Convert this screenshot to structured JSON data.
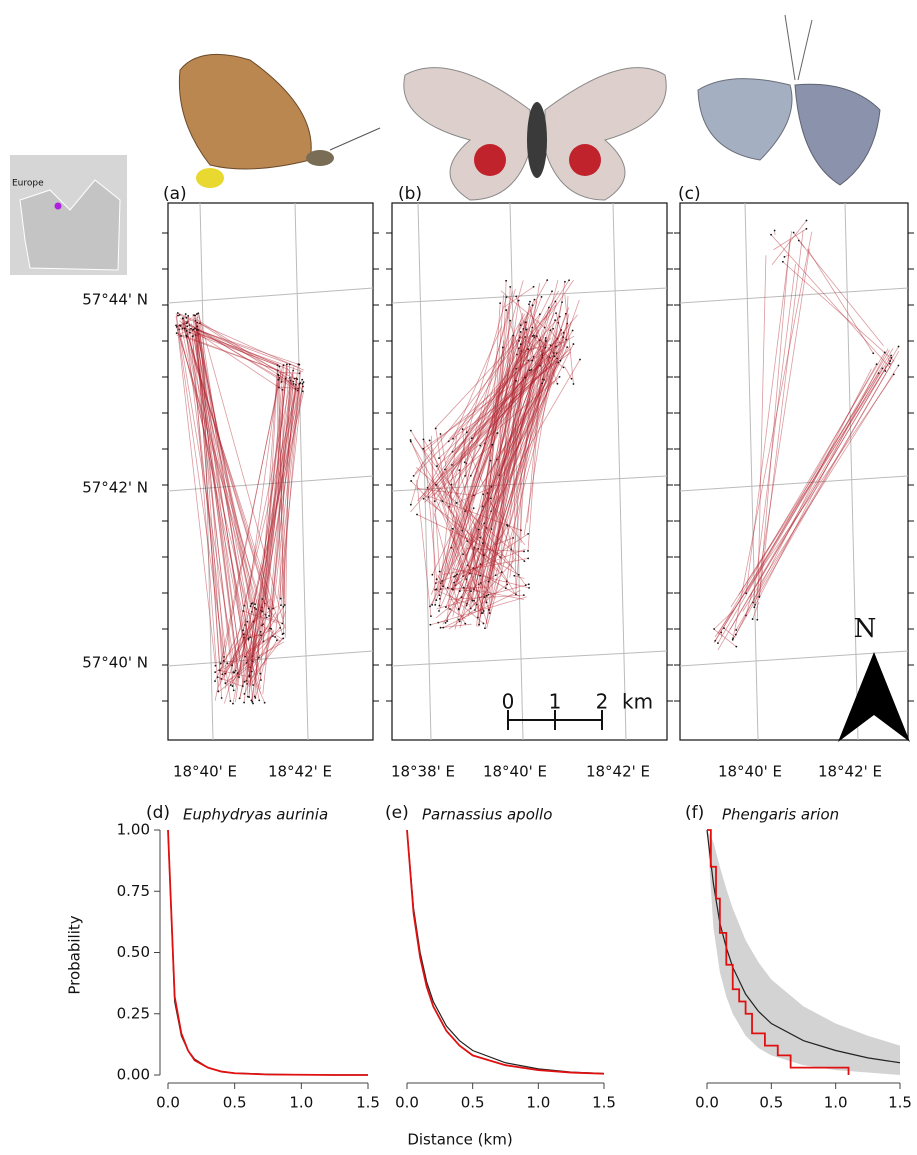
{
  "inset": {
    "label": "Europe"
  },
  "maps": {
    "panels": [
      {
        "label": "(a)",
        "xticks": [
          "18°40' E",
          "18°42' E"
        ]
      },
      {
        "label": "(b)",
        "xticks": [
          "18°38' E",
          "18°40' E",
          "18°42' E"
        ]
      },
      {
        "label": "(c)",
        "xticks": [
          "18°40' E",
          "18°42' E"
        ]
      }
    ],
    "yticks": [
      "57°44' N",
      "57°42' N",
      "57°40' N"
    ],
    "scale_bar": {
      "ticks": [
        "0",
        "1",
        "2"
      ],
      "unit": "km"
    },
    "north": "N"
  },
  "chart_data": [
    {
      "type": "line",
      "label": "(d)",
      "title": "Euphydryas aurinia",
      "ylabel": "Probability",
      "x": [
        0,
        0.05,
        0.1,
        0.15,
        0.2,
        0.3,
        0.4,
        0.5,
        0.75,
        1,
        1.25,
        1.5
      ],
      "series": [
        {
          "color": "#222222",
          "values": [
            1,
            0.3,
            0.16,
            0.1,
            0.065,
            0.03,
            0.015,
            0.008,
            0.003,
            0.001,
            0,
            0
          ]
        },
        {
          "color": "#e01010",
          "values": [
            1,
            0.32,
            0.17,
            0.1,
            0.06,
            0.03,
            0.014,
            0.007,
            0.002,
            0.001,
            0,
            0
          ]
        }
      ],
      "xlim": [
        0,
        1.5
      ],
      "ylim": [
        0,
        1
      ],
      "xticks": [
        {
          "value": 0,
          "label": "0.0"
        },
        {
          "value": 0.5,
          "label": "0.5"
        },
        {
          "value": 1,
          "label": "1.0"
        },
        {
          "value": 1.5,
          "label": "1.5"
        }
      ],
      "yticks": [
        {
          "value": 0,
          "label": "0.00"
        },
        {
          "value": 0.25,
          "label": "0.25"
        },
        {
          "value": 0.5,
          "label": "0.50"
        },
        {
          "value": 0.75,
          "label": "0.75"
        },
        {
          "value": 1,
          "label": "1.00"
        }
      ]
    },
    {
      "type": "line",
      "label": "(e)",
      "title": "Parnassius apollo",
      "xlabel": "Distance (km)",
      "x": [
        0,
        0.05,
        0.1,
        0.15,
        0.2,
        0.3,
        0.4,
        0.5,
        0.75,
        1,
        1.25,
        1.5
      ],
      "series": [
        {
          "color": "#222222",
          "values": [
            1,
            0.68,
            0.5,
            0.38,
            0.3,
            0.2,
            0.14,
            0.1,
            0.05,
            0.025,
            0.012,
            0.006
          ]
        },
        {
          "color": "#e01010",
          "values": [
            1,
            0.66,
            0.48,
            0.36,
            0.28,
            0.18,
            0.12,
            0.08,
            0.04,
            0.02,
            0.01,
            0.005
          ]
        }
      ],
      "xlim": [
        0,
        1.5
      ],
      "ylim": [
        0,
        1
      ],
      "xticks": [
        {
          "value": 0,
          "label": "0.0"
        },
        {
          "value": 0.5,
          "label": "0.5"
        },
        {
          "value": 1,
          "label": "1.0"
        },
        {
          "value": 1.5,
          "label": "1.5"
        }
      ]
    },
    {
      "type": "line",
      "label": "(f)",
      "title": "Phengaris arion",
      "x": [
        0,
        0.05,
        0.1,
        0.15,
        0.2,
        0.3,
        0.4,
        0.5,
        0.75,
        1,
        1.25,
        1.5
      ],
      "band": {
        "color": "#d3d3d3",
        "upper": [
          1,
          0.95,
          0.85,
          0.76,
          0.68,
          0.55,
          0.46,
          0.39,
          0.28,
          0.21,
          0.16,
          0.12
        ],
        "lower": [
          1,
          0.6,
          0.42,
          0.32,
          0.25,
          0.16,
          0.11,
          0.08,
          0.04,
          0.02,
          0.01,
          0
        ]
      },
      "series": [
        {
          "color": "#222222",
          "values": [
            1,
            0.78,
            0.62,
            0.52,
            0.44,
            0.33,
            0.26,
            0.21,
            0.14,
            0.1,
            0.07,
            0.05
          ]
        },
        {
          "color": "#e01010",
          "x": [
            0,
            0.03,
            0.03,
            0.07,
            0.07,
            0.1,
            0.1,
            0.15,
            0.15,
            0.2,
            0.2,
            0.25,
            0.25,
            0.3,
            0.3,
            0.35,
            0.35,
            0.45,
            0.45,
            0.55,
            0.55,
            0.65,
            0.65,
            1.1,
            1.1
          ],
          "values": [
            1,
            1,
            0.85,
            0.85,
            0.72,
            0.72,
            0.58,
            0.58,
            0.45,
            0.45,
            0.35,
            0.35,
            0.3,
            0.3,
            0.25,
            0.25,
            0.17,
            0.17,
            0.12,
            0.12,
            0.08,
            0.08,
            0.03,
            0.03,
            0
          ]
        }
      ],
      "xlim": [
        0,
        1.5
      ],
      "ylim": [
        0,
        1
      ],
      "xticks": [
        {
          "value": 0,
          "label": "0.0"
        },
        {
          "value": 0.5,
          "label": "0.5"
        },
        {
          "value": 1,
          "label": "1.0"
        },
        {
          "value": 1.5,
          "label": "1.5"
        }
      ]
    }
  ]
}
